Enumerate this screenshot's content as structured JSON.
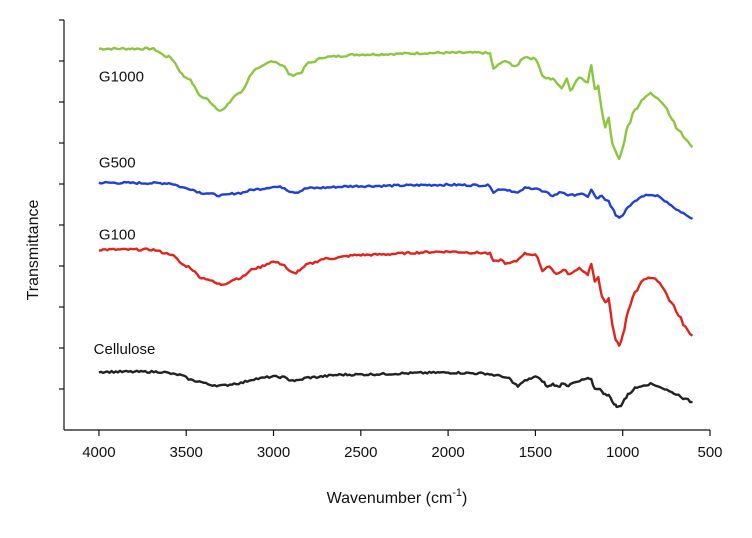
{
  "chart_data": {
    "type": "line",
    "title": "",
    "xlabel": {
      "main": "Wavenumber (cm",
      "sup": "-1",
      "end": ")"
    },
    "ylabel": "Transmittance",
    "xlim": [
      4200,
      500
    ],
    "ylim": [
      0,
      10
    ],
    "x_ticks": [
      4000,
      3500,
      3000,
      2500,
      2000,
      1500,
      1000,
      500
    ],
    "x_tick_labels": [
      "4000",
      "3500",
      "3000",
      "2500",
      "2000",
      "1500",
      "1000",
      "500"
    ],
    "y_ticks": [
      1,
      2,
      3,
      4,
      5,
      6,
      7,
      8,
      9,
      10
    ],
    "y_tick_labels": false,
    "grid": false,
    "legend": "none",
    "series": [
      {
        "name": "G1000",
        "color": "#8cc63f",
        "label_x": 4000,
        "label_y": 8.5,
        "points": [
          [
            4000,
            9.3
          ],
          [
            3700,
            9.3
          ],
          [
            3600,
            9.1
          ],
          [
            3500,
            8.6
          ],
          [
            3400,
            8.1
          ],
          [
            3300,
            7.8
          ],
          [
            3200,
            8.2
          ],
          [
            3100,
            8.8
          ],
          [
            3000,
            9.0
          ],
          [
            2950,
            8.9
          ],
          [
            2900,
            8.65
          ],
          [
            2850,
            8.7
          ],
          [
            2800,
            8.95
          ],
          [
            2700,
            9.1
          ],
          [
            2500,
            9.16
          ],
          [
            2000,
            9.2
          ],
          [
            1800,
            9.2
          ],
          [
            1760,
            9.18
          ],
          [
            1740,
            8.8
          ],
          [
            1700,
            8.95
          ],
          [
            1660,
            9.0
          ],
          [
            1620,
            8.85
          ],
          [
            1560,
            9.1
          ],
          [
            1500,
            9.05
          ],
          [
            1450,
            8.6
          ],
          [
            1400,
            8.55
          ],
          [
            1350,
            8.35
          ],
          [
            1320,
            8.55
          ],
          [
            1300,
            8.3
          ],
          [
            1250,
            8.6
          ],
          [
            1200,
            8.5
          ],
          [
            1180,
            8.9
          ],
          [
            1160,
            8.3
          ],
          [
            1140,
            8.4
          ],
          [
            1120,
            7.8
          ],
          [
            1100,
            7.4
          ],
          [
            1080,
            7.6
          ],
          [
            1060,
            7.0
          ],
          [
            1040,
            6.8
          ],
          [
            1020,
            6.6
          ],
          [
            1000,
            6.9
          ],
          [
            970,
            7.4
          ],
          [
            930,
            7.8
          ],
          [
            880,
            8.1
          ],
          [
            840,
            8.2
          ],
          [
            800,
            8.1
          ],
          [
            760,
            7.9
          ],
          [
            720,
            7.6
          ],
          [
            680,
            7.3
          ],
          [
            640,
            7.1
          ],
          [
            600,
            6.9
          ]
        ]
      },
      {
        "name": "G500",
        "color": "#1f3fd9",
        "label_x": 4000,
        "label_y": 6.4,
        "points": [
          [
            4000,
            6.03
          ],
          [
            3600,
            6.02
          ],
          [
            3500,
            5.9
          ],
          [
            3400,
            5.78
          ],
          [
            3300,
            5.72
          ],
          [
            3200,
            5.78
          ],
          [
            3100,
            5.87
          ],
          [
            3000,
            5.93
          ],
          [
            2950,
            5.92
          ],
          [
            2900,
            5.82
          ],
          [
            2870,
            5.8
          ],
          [
            2800,
            5.9
          ],
          [
            2500,
            5.95
          ],
          [
            2000,
            5.98
          ],
          [
            1800,
            5.97
          ],
          [
            1760,
            5.96
          ],
          [
            1740,
            5.8
          ],
          [
            1700,
            5.88
          ],
          [
            1660,
            5.86
          ],
          [
            1600,
            5.78
          ],
          [
            1560,
            5.9
          ],
          [
            1500,
            5.9
          ],
          [
            1450,
            5.8
          ],
          [
            1400,
            5.72
          ],
          [
            1350,
            5.8
          ],
          [
            1300,
            5.72
          ],
          [
            1250,
            5.76
          ],
          [
            1200,
            5.7
          ],
          [
            1180,
            5.85
          ],
          [
            1150,
            5.65
          ],
          [
            1120,
            5.7
          ],
          [
            1100,
            5.6
          ],
          [
            1080,
            5.58
          ],
          [
            1060,
            5.4
          ],
          [
            1040,
            5.25
          ],
          [
            1020,
            5.18
          ],
          [
            1000,
            5.25
          ],
          [
            970,
            5.45
          ],
          [
            930,
            5.6
          ],
          [
            880,
            5.72
          ],
          [
            840,
            5.75
          ],
          [
            800,
            5.72
          ],
          [
            760,
            5.6
          ],
          [
            720,
            5.45
          ],
          [
            680,
            5.35
          ],
          [
            640,
            5.25
          ],
          [
            600,
            5.15
          ]
        ]
      },
      {
        "name": "G100",
        "color": "#e0241b",
        "label_x": 4000,
        "label_y": 4.65,
        "points": [
          [
            4000,
            4.4
          ],
          [
            3700,
            4.4
          ],
          [
            3600,
            4.3
          ],
          [
            3500,
            4.0
          ],
          [
            3400,
            3.7
          ],
          [
            3300,
            3.55
          ],
          [
            3200,
            3.7
          ],
          [
            3100,
            3.95
          ],
          [
            3000,
            4.1
          ],
          [
            2950,
            4.05
          ],
          [
            2900,
            3.85
          ],
          [
            2880,
            3.82
          ],
          [
            2850,
            3.9
          ],
          [
            2800,
            4.05
          ],
          [
            2700,
            4.18
          ],
          [
            2500,
            4.27
          ],
          [
            2000,
            4.35
          ],
          [
            1800,
            4.32
          ],
          [
            1760,
            4.3
          ],
          [
            1740,
            4.1
          ],
          [
            1700,
            4.15
          ],
          [
            1660,
            4.05
          ],
          [
            1620,
            4.1
          ],
          [
            1560,
            4.3
          ],
          [
            1500,
            4.28
          ],
          [
            1460,
            3.9
          ],
          [
            1420,
            4.0
          ],
          [
            1380,
            3.8
          ],
          [
            1340,
            3.9
          ],
          [
            1300,
            3.8
          ],
          [
            1250,
            3.95
          ],
          [
            1200,
            3.8
          ],
          [
            1180,
            4.05
          ],
          [
            1160,
            3.6
          ],
          [
            1140,
            3.75
          ],
          [
            1120,
            3.25
          ],
          [
            1100,
            3.1
          ],
          [
            1080,
            3.2
          ],
          [
            1060,
            2.6
          ],
          [
            1040,
            2.2
          ],
          [
            1020,
            2.05
          ],
          [
            1000,
            2.3
          ],
          [
            970,
            2.9
          ],
          [
            930,
            3.35
          ],
          [
            880,
            3.65
          ],
          [
            840,
            3.72
          ],
          [
            800,
            3.65
          ],
          [
            760,
            3.4
          ],
          [
            720,
            3.1
          ],
          [
            680,
            2.8
          ],
          [
            640,
            2.5
          ],
          [
            600,
            2.3
          ]
        ]
      },
      {
        "name": "Cellulose",
        "color": "#222222",
        "label_x": 4030,
        "label_y": 1.85,
        "points": [
          [
            4000,
            1.42
          ],
          [
            3650,
            1.42
          ],
          [
            3550,
            1.35
          ],
          [
            3450,
            1.2
          ],
          [
            3350,
            1.1
          ],
          [
            3300,
            1.08
          ],
          [
            3200,
            1.14
          ],
          [
            3100,
            1.25
          ],
          [
            3000,
            1.3
          ],
          [
            2950,
            1.29
          ],
          [
            2900,
            1.22
          ],
          [
            2870,
            1.2
          ],
          [
            2800,
            1.28
          ],
          [
            2600,
            1.35
          ],
          [
            2000,
            1.4
          ],
          [
            1800,
            1.38
          ],
          [
            1700,
            1.32
          ],
          [
            1650,
            1.25
          ],
          [
            1620,
            1.12
          ],
          [
            1600,
            1.08
          ],
          [
            1560,
            1.2
          ],
          [
            1500,
            1.3
          ],
          [
            1460,
            1.2
          ],
          [
            1430,
            1.05
          ],
          [
            1400,
            1.12
          ],
          [
            1370,
            1.05
          ],
          [
            1340,
            1.15
          ],
          [
            1310,
            1.08
          ],
          [
            1280,
            1.15
          ],
          [
            1200,
            1.25
          ],
          [
            1180,
            1.22
          ],
          [
            1160,
            1.0
          ],
          [
            1140,
            1.02
          ],
          [
            1110,
            0.9
          ],
          [
            1080,
            0.85
          ],
          [
            1060,
            0.7
          ],
          [
            1040,
            0.6
          ],
          [
            1030,
            0.55
          ],
          [
            1010,
            0.6
          ],
          [
            990,
            0.75
          ],
          [
            960,
            0.9
          ],
          [
            930,
            1.02
          ],
          [
            880,
            1.1
          ],
          [
            840,
            1.12
          ],
          [
            800,
            1.08
          ],
          [
            760,
            1.0
          ],
          [
            720,
            0.92
          ],
          [
            680,
            0.85
          ],
          [
            640,
            0.75
          ],
          [
            600,
            0.68
          ]
        ]
      }
    ]
  }
}
